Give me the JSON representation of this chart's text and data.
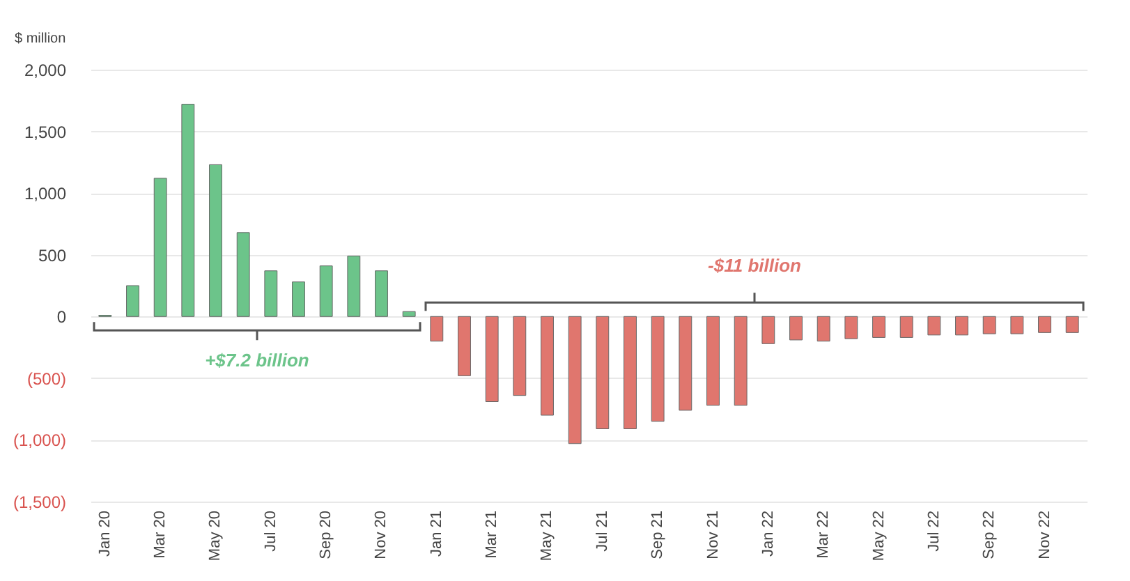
{
  "chart_data": {
    "type": "bar",
    "ylabel": "$ million",
    "categories": [
      "Jan 20",
      null,
      "Mar 20",
      null,
      "May 20",
      null,
      "Jul 20",
      null,
      "Sep 20",
      null,
      "Nov 20",
      null,
      "Jan 21",
      null,
      "Mar 21",
      null,
      "May 21",
      null,
      "Jul 21",
      null,
      "Sep 21",
      null,
      "Nov 21",
      null,
      "Jan 22",
      null,
      "Mar 22",
      null,
      "May 22",
      null,
      "Jul 22",
      null,
      "Sep 22",
      null,
      "Nov 22",
      null
    ],
    "values": [
      10,
      250,
      1120,
      1720,
      1230,
      680,
      370,
      280,
      410,
      490,
      370,
      40,
      -200,
      -480,
      -690,
      -640,
      -800,
      -1030,
      -910,
      -910,
      -850,
      -760,
      -720,
      -720,
      -220,
      -190,
      -200,
      -180,
      -170,
      -170,
      -150,
      -150,
      -140,
      -140,
      -130,
      -130
    ],
    "colors": [
      "#6cc48a",
      "#6cc48a",
      "#6cc48a",
      "#6cc48a",
      "#6cc48a",
      "#6cc48a",
      "#6cc48a",
      "#6cc48a",
      "#6cc48a",
      "#6cc48a",
      "#6cc48a",
      "#6cc48a",
      "#e0766e",
      "#e0766e",
      "#e0766e",
      "#e0766e",
      "#e0766e",
      "#e0766e",
      "#e0766e",
      "#e0766e",
      "#e0766e",
      "#e0766e",
      "#e0766e",
      "#e0766e",
      "#e0766e",
      "#e0766e",
      "#e0766e",
      "#e0766e",
      "#e0766e",
      "#e0766e",
      "#e0766e",
      "#e0766e",
      "#e0766e",
      "#e0766e",
      "#e0766e",
      "#e0766e"
    ],
    "ylim": [
      -1500,
      2000
    ],
    "yticks": [
      {
        "value": -1500,
        "label": "(1,500)"
      },
      {
        "value": -1000,
        "label": "(1,000)"
      },
      {
        "value": -500,
        "label": "(500)"
      },
      0,
      500,
      {
        "value": 1000,
        "label": "1,000"
      },
      {
        "value": 1500,
        "label": "1,500"
      },
      {
        "value": 2000,
        "label": "2,000"
      }
    ],
    "grid": "y",
    "annotations": [
      "+$7.2 billion",
      "-$11 billion"
    ]
  }
}
